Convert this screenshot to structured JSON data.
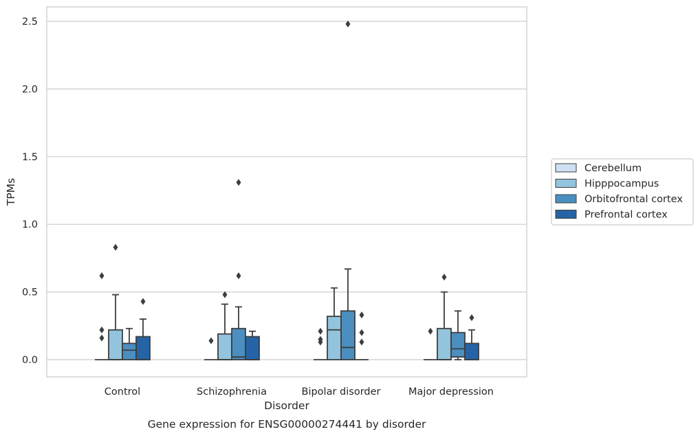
{
  "chart_data": {
    "type": "box",
    "title": "Gene expression for ENSG00000274441 by disorder",
    "xlabel": "Disorder",
    "ylabel": "TPMs",
    "categories": [
      "Control",
      "Schizophrenia",
      "Bipolar disorder",
      "Major depression"
    ],
    "ylim": [
      -0.12,
      2.62
    ],
    "yticks": [
      "0.0",
      "0.5",
      "1.0",
      "1.5",
      "2.0",
      "2.5"
    ],
    "grid": "horizontal",
    "legend_position": "right",
    "series": [
      {
        "name": "Cerebellum",
        "color": "#cfe1f2",
        "boxes": [
          {
            "q1": 0,
            "median": 0,
            "q3": 0,
            "whisker_low": 0,
            "whisker_high": 0,
            "outliers": [
              0.62,
              0.22,
              0.16
            ]
          },
          {
            "q1": 0,
            "median": 0,
            "q3": 0,
            "whisker_low": 0,
            "whisker_high": 0,
            "outliers": [
              0.14
            ]
          },
          {
            "q1": 0,
            "median": 0,
            "q3": 0,
            "whisker_low": 0,
            "whisker_high": 0,
            "outliers": [
              0.21,
              0.15,
              0.13
            ]
          },
          {
            "q1": 0,
            "median": 0,
            "q3": 0,
            "whisker_low": 0,
            "whisker_high": 0,
            "outliers": [
              0.21
            ]
          }
        ]
      },
      {
        "name": "Hipppocampus",
        "color": "#93c4de",
        "boxes": [
          {
            "q1": 0,
            "median": 0,
            "q3": 0.22,
            "whisker_low": 0,
            "whisker_high": 0.48,
            "outliers": [
              0.83
            ]
          },
          {
            "q1": 0,
            "median": 0,
            "q3": 0.19,
            "whisker_low": 0,
            "whisker_high": 0.41,
            "outliers": [
              0.48
            ]
          },
          {
            "q1": 0,
            "median": 0.22,
            "q3": 0.32,
            "whisker_low": 0,
            "whisker_high": 0.53,
            "outliers": []
          },
          {
            "q1": 0,
            "median": 0,
            "q3": 0.23,
            "whisker_low": 0,
            "whisker_high": 0.5,
            "outliers": [
              0.61
            ]
          }
        ]
      },
      {
        "name": "Orbitofrontal cortex",
        "color": "#4a8fc0",
        "boxes": [
          {
            "q1": 0,
            "median": 0.07,
            "q3": 0.12,
            "whisker_low": 0,
            "whisker_high": 0.23,
            "outliers": []
          },
          {
            "q1": 0,
            "median": 0.02,
            "q3": 0.23,
            "whisker_low": 0,
            "whisker_high": 0.39,
            "outliers": [
              1.31,
              0.62
            ]
          },
          {
            "q1": 0,
            "median": 0.09,
            "q3": 0.36,
            "whisker_low": 0,
            "whisker_high": 0.67,
            "outliers": [
              2.48
            ]
          },
          {
            "q1": 0.02,
            "median": 0.08,
            "q3": 0.2,
            "whisker_low": 0,
            "whisker_high": 0.36,
            "outliers": []
          }
        ]
      },
      {
        "name": "Prefrontal cortex",
        "color": "#2563a6",
        "boxes": [
          {
            "q1": 0,
            "median": 0,
            "q3": 0.17,
            "whisker_low": 0,
            "whisker_high": 0.3,
            "outliers": [
              0.43
            ]
          },
          {
            "q1": 0,
            "median": 0,
            "q3": 0.17,
            "whisker_low": 0,
            "whisker_high": 0.21,
            "outliers": []
          },
          {
            "q1": 0,
            "median": 0,
            "q3": 0,
            "whisker_low": 0,
            "whisker_high": 0,
            "outliers": [
              0.33,
              0.2,
              0.13
            ]
          },
          {
            "q1": 0,
            "median": 0,
            "q3": 0.12,
            "whisker_low": 0,
            "whisker_high": 0.22,
            "outliers": [
              0.31
            ]
          }
        ]
      }
    ]
  }
}
